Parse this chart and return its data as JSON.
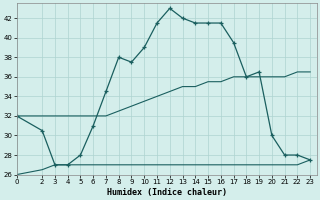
{
  "xlabel": "Humidex (Indice chaleur)",
  "bg_color": "#d4eeeb",
  "grid_color": "#aed4d0",
  "line_color": "#1a5f5f",
  "xlim": [
    0,
    23.5
  ],
  "ylim": [
    26,
    43.5
  ],
  "xticks": [
    0,
    2,
    3,
    4,
    5,
    6,
    7,
    8,
    9,
    10,
    11,
    12,
    13,
    14,
    15,
    16,
    17,
    18,
    19,
    20,
    21,
    22,
    23
  ],
  "yticks": [
    26,
    28,
    30,
    32,
    34,
    36,
    38,
    40,
    42
  ],
  "line1_x": [
    0,
    2,
    3,
    4,
    5,
    6,
    7,
    8,
    9,
    10,
    11,
    12,
    13,
    14,
    15,
    16,
    17,
    18,
    19,
    20,
    21,
    22,
    23
  ],
  "line1_y": [
    32,
    30.5,
    27,
    27,
    28,
    31,
    34.5,
    38,
    37.5,
    39,
    41.5,
    43,
    42,
    41.5,
    41.5,
    41.5,
    39.5,
    36,
    36.5,
    30,
    28,
    28,
    27.5
  ],
  "line2_x": [
    0,
    2,
    3,
    4,
    5,
    6,
    7,
    8,
    9,
    10,
    11,
    12,
    13,
    14,
    15,
    16,
    17,
    18,
    19,
    20,
    21,
    22,
    23
  ],
  "line2_y": [
    32,
    32,
    32,
    32,
    32,
    32,
    32,
    32.5,
    33,
    33.5,
    34,
    34.5,
    35,
    35,
    35.5,
    35.5,
    36,
    36,
    36,
    36,
    36,
    36.5,
    36.5
  ],
  "line3_x": [
    0,
    2,
    3,
    4,
    5,
    10,
    18,
    21,
    22,
    23
  ],
  "line3_y": [
    26,
    26.5,
    27,
    27,
    27,
    27,
    27,
    27,
    27,
    27.5
  ]
}
